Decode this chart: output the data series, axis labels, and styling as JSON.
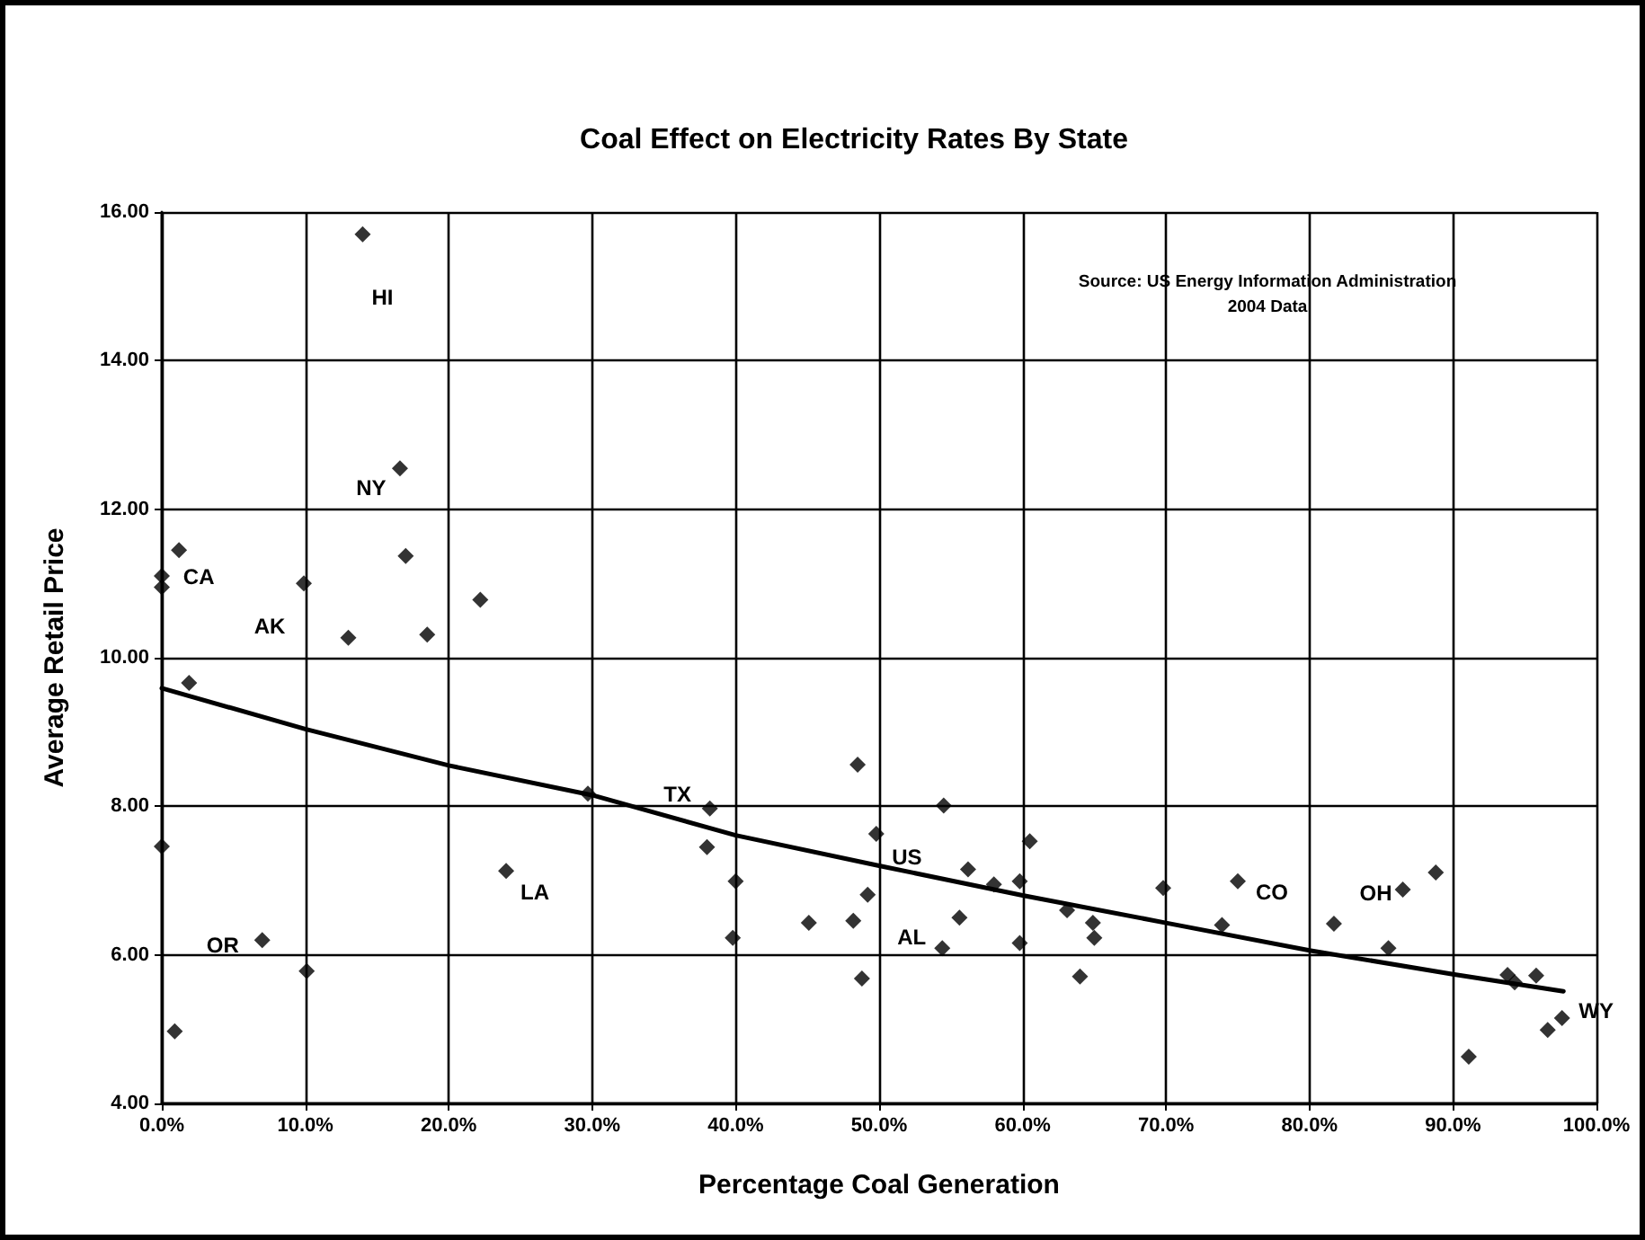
{
  "chart_data": {
    "type": "scatter",
    "title": "Coal Effect on Electricity Rates By State",
    "xlabel": "Percentage Coal Generation",
    "ylabel": "Average Retail Price",
    "xlim": [
      0,
      100
    ],
    "xticks": [
      {
        "value": 0,
        "label": "0.0%"
      },
      {
        "value": 10,
        "label": "10.0%"
      },
      {
        "value": 20,
        "label": "20.0%"
      },
      {
        "value": 30,
        "label": "30.0%"
      },
      {
        "value": 40,
        "label": "40.0%"
      },
      {
        "value": 50,
        "label": "50.0%"
      },
      {
        "value": 60,
        "label": "60.0%"
      },
      {
        "value": 70,
        "label": "70.0%"
      },
      {
        "value": 80,
        "label": "80.0%"
      },
      {
        "value": 90,
        "label": "90.0%"
      },
      {
        "value": 100,
        "label": "100.0%"
      }
    ],
    "ylim": [
      4,
      16
    ],
    "yticks": [
      {
        "value": 4,
        "label": "4.00"
      },
      {
        "value": 6,
        "label": "6.00"
      },
      {
        "value": 8,
        "label": "8.00"
      },
      {
        "value": 10,
        "label": "10.00"
      },
      {
        "value": 12,
        "label": "12.00"
      },
      {
        "value": 14,
        "label": "14.00"
      },
      {
        "value": 16,
        "label": "16.00"
      }
    ],
    "grid": true,
    "series": [
      {
        "color": "#000000",
        "marker": "diamond",
        "x": [
          14.0,
          16.6,
          1.2,
          0.0,
          0.0,
          9.9,
          17.0,
          22.2,
          13.0,
          18.5,
          1.9,
          0.0,
          24.0,
          7.0,
          10.1,
          0.9,
          29.7,
          38.2,
          38.0,
          40.0,
          39.8,
          48.5,
          54.5,
          49.8,
          45.1,
          48.2,
          49.2,
          48.8,
          54.4,
          56.2,
          55.6,
          58.0,
          59.8,
          60.5,
          59.8,
          63.1,
          64.9,
          65.0,
          64.0,
          69.8,
          75.0,
          73.9,
          86.5,
          88.8,
          81.7,
          85.5,
          93.8,
          94.3,
          95.8,
          91.1,
          96.6,
          97.6
        ],
        "values": [
          15.7,
          12.55,
          11.45,
          11.1,
          10.95,
          11.0,
          11.37,
          10.78,
          10.27,
          10.31,
          9.66,
          7.46,
          7.13,
          6.2,
          5.78,
          4.97,
          8.17,
          7.97,
          7.45,
          6.99,
          6.23,
          8.56,
          8.01,
          7.63,
          6.43,
          6.46,
          6.81,
          5.68,
          6.09,
          7.15,
          6.5,
          6.95,
          6.99,
          7.53,
          6.16,
          6.6,
          6.43,
          6.23,
          5.71,
          6.9,
          6.99,
          6.4,
          6.88,
          7.11,
          6.42,
          6.09,
          5.73,
          5.63,
          5.72,
          4.63,
          4.99,
          5.15
        ]
      },
      {
        "type": "line",
        "color": "#000000",
        "marker": "none",
        "x": [
          0,
          10,
          20,
          30,
          40,
          50,
          60,
          70,
          80,
          90,
          97.7
        ],
        "values": [
          9.59,
          9.04,
          8.55,
          8.15,
          7.61,
          7.2,
          6.8,
          6.43,
          6.06,
          5.74,
          5.51
        ]
      }
    ],
    "annotations": [
      {
        "text": "HI",
        "x": 14.0,
        "y": 15.7
      },
      {
        "text": "NY",
        "x": 16.6,
        "y": 12.55
      },
      {
        "text": "CA",
        "x": 1.2,
        "y": 11.45
      },
      {
        "text": "AK",
        "x": 9.9,
        "y": 11.0
      },
      {
        "text": "OR",
        "x": 7.0,
        "y": 6.2
      },
      {
        "text": "LA",
        "x": 24.0,
        "y": 7.13
      },
      {
        "text": "TX",
        "x": 38.2,
        "y": 7.97
      },
      {
        "text": "US",
        "x": 49.8,
        "y": 7.63
      },
      {
        "text": "AL",
        "x": 54.4,
        "y": 6.09
      },
      {
        "text": "CO",
        "x": 75.0,
        "y": 6.99
      },
      {
        "text": "OH",
        "x": 86.5,
        "y": 6.88
      },
      {
        "text": "WY",
        "x": 97.6,
        "y": 5.15
      },
      "Source: US Energy Information Administration",
      "2004 Data"
    ]
  }
}
